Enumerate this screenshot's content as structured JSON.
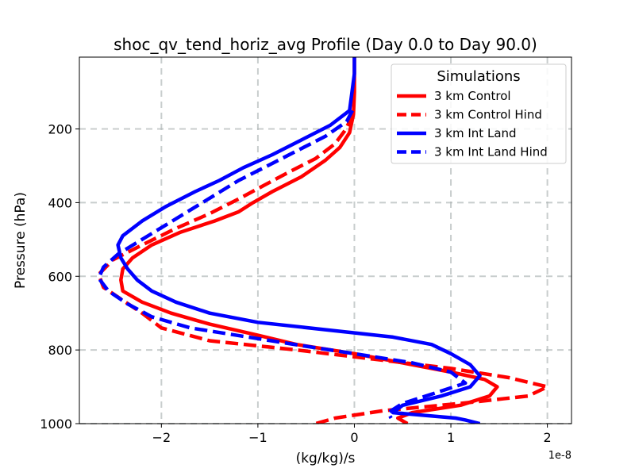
{
  "chart_data": {
    "type": "line",
    "title": "shoc_qv_tend_horiz_avg Profile (Day 0.0 to Day 90.0)",
    "xlabel": "(kg/kg)/s",
    "ylabel": "Pressure (hPa)",
    "x_offset_text": "1e-8",
    "xlim": [
      -2.85,
      2.25
    ],
    "ylim": [
      1000,
      5
    ],
    "x_ticks": [
      -2,
      -1,
      0,
      1,
      2
    ],
    "x_tick_labels": [
      "−2",
      "−1",
      "0",
      "1",
      "2"
    ],
    "y_ticks": [
      200,
      400,
      600,
      800,
      1000
    ],
    "y_tick_labels": [
      "200",
      "400",
      "600",
      "800",
      "1000"
    ],
    "grid": true,
    "legend": {
      "title": "Simulations",
      "placement": "upper right",
      "entries": [
        "3 km Control",
        "3 km Control Hind",
        "3 km Int Land",
        "3 km Int Land Hind"
      ]
    },
    "series": [
      {
        "name": "3 km Control",
        "color": "#ff0000",
        "dash": "solid",
        "x": [
          0.0,
          0.0,
          -0.01,
          -0.05,
          -0.15,
          -0.3,
          -0.55,
          -0.85,
          -1.05,
          -1.2,
          -1.45,
          -1.8,
          -2.1,
          -2.3,
          -2.4,
          -2.42,
          -2.4,
          -2.2,
          -1.9,
          -1.5,
          -1.0,
          -0.6,
          0.0,
          0.5,
          1.0,
          1.35,
          1.48,
          1.4,
          1.1,
          0.6,
          0.45,
          0.55
        ],
        "y": [
          5,
          100,
          160,
          210,
          250,
          285,
          330,
          370,
          400,
          425,
          450,
          480,
          515,
          550,
          580,
          610,
          640,
          670,
          700,
          730,
          760,
          785,
          810,
          835,
          860,
          880,
          900,
          925,
          950,
          970,
          985,
          1000
        ]
      },
      {
        "name": "3 km Control Hind",
        "color": "#ff0000",
        "dash": "dashed",
        "x": [
          -0.02,
          -0.05,
          -0.1,
          -0.2,
          -0.4,
          -0.7,
          -0.95,
          -1.2,
          -1.5,
          -1.85,
          -2.2,
          -2.5,
          -2.65,
          -2.6,
          -2.4,
          -2.2,
          -2.0,
          -1.5,
          -0.6,
          0.2,
          1.0,
          1.6,
          2.0,
          1.8,
          1.1,
          0.3,
          -0.2,
          -0.4
        ],
        "y": [
          160,
          180,
          205,
          240,
          280,
          320,
          355,
          390,
          430,
          470,
          515,
          555,
          595,
          630,
          665,
          700,
          740,
          775,
          800,
          825,
          850,
          875,
          900,
          925,
          945,
          965,
          985,
          1000
        ]
      },
      {
        "name": "3 km Int Land",
        "color": "#0000ff",
        "dash": "solid",
        "x": [
          0.0,
          0.0,
          -0.05,
          -0.25,
          -0.55,
          -0.85,
          -1.15,
          -1.4,
          -1.65,
          -1.95,
          -2.2,
          -2.4,
          -2.45,
          -2.42,
          -2.35,
          -2.25,
          -2.1,
          -1.85,
          -1.5,
          -1.0,
          -0.3,
          0.4,
          0.8,
          1.0,
          1.2,
          1.3,
          1.2,
          0.9,
          0.5,
          0.4,
          1.05,
          1.15,
          1.3
        ],
        "y": [
          5,
          50,
          150,
          190,
          230,
          270,
          305,
          340,
          370,
          410,
          450,
          490,
          515,
          550,
          580,
          610,
          640,
          670,
          700,
          725,
          745,
          765,
          785,
          810,
          840,
          870,
          900,
          925,
          950,
          970,
          985,
          990,
          1000
        ]
      },
      {
        "name": "3 km Int Land Hind",
        "color": "#0000ff",
        "dash": "dashed",
        "x": [
          -0.02,
          -0.08,
          -0.3,
          -0.6,
          -0.9,
          -1.2,
          -1.45,
          -1.7,
          -1.95,
          -2.2,
          -2.45,
          -2.6,
          -2.65,
          -2.55,
          -2.35,
          -2.1,
          -1.7,
          -1.1,
          -0.5,
          0.0,
          0.6,
          1.0,
          1.15,
          0.8,
          0.5,
          0.35,
          0.38
        ],
        "y": [
          150,
          180,
          220,
          260,
          300,
          340,
          380,
          420,
          460,
          500,
          540,
          575,
          605,
          640,
          675,
          710,
          740,
          765,
          790,
          810,
          835,
          860,
          890,
          920,
          945,
          970,
          985
        ]
      }
    ]
  }
}
